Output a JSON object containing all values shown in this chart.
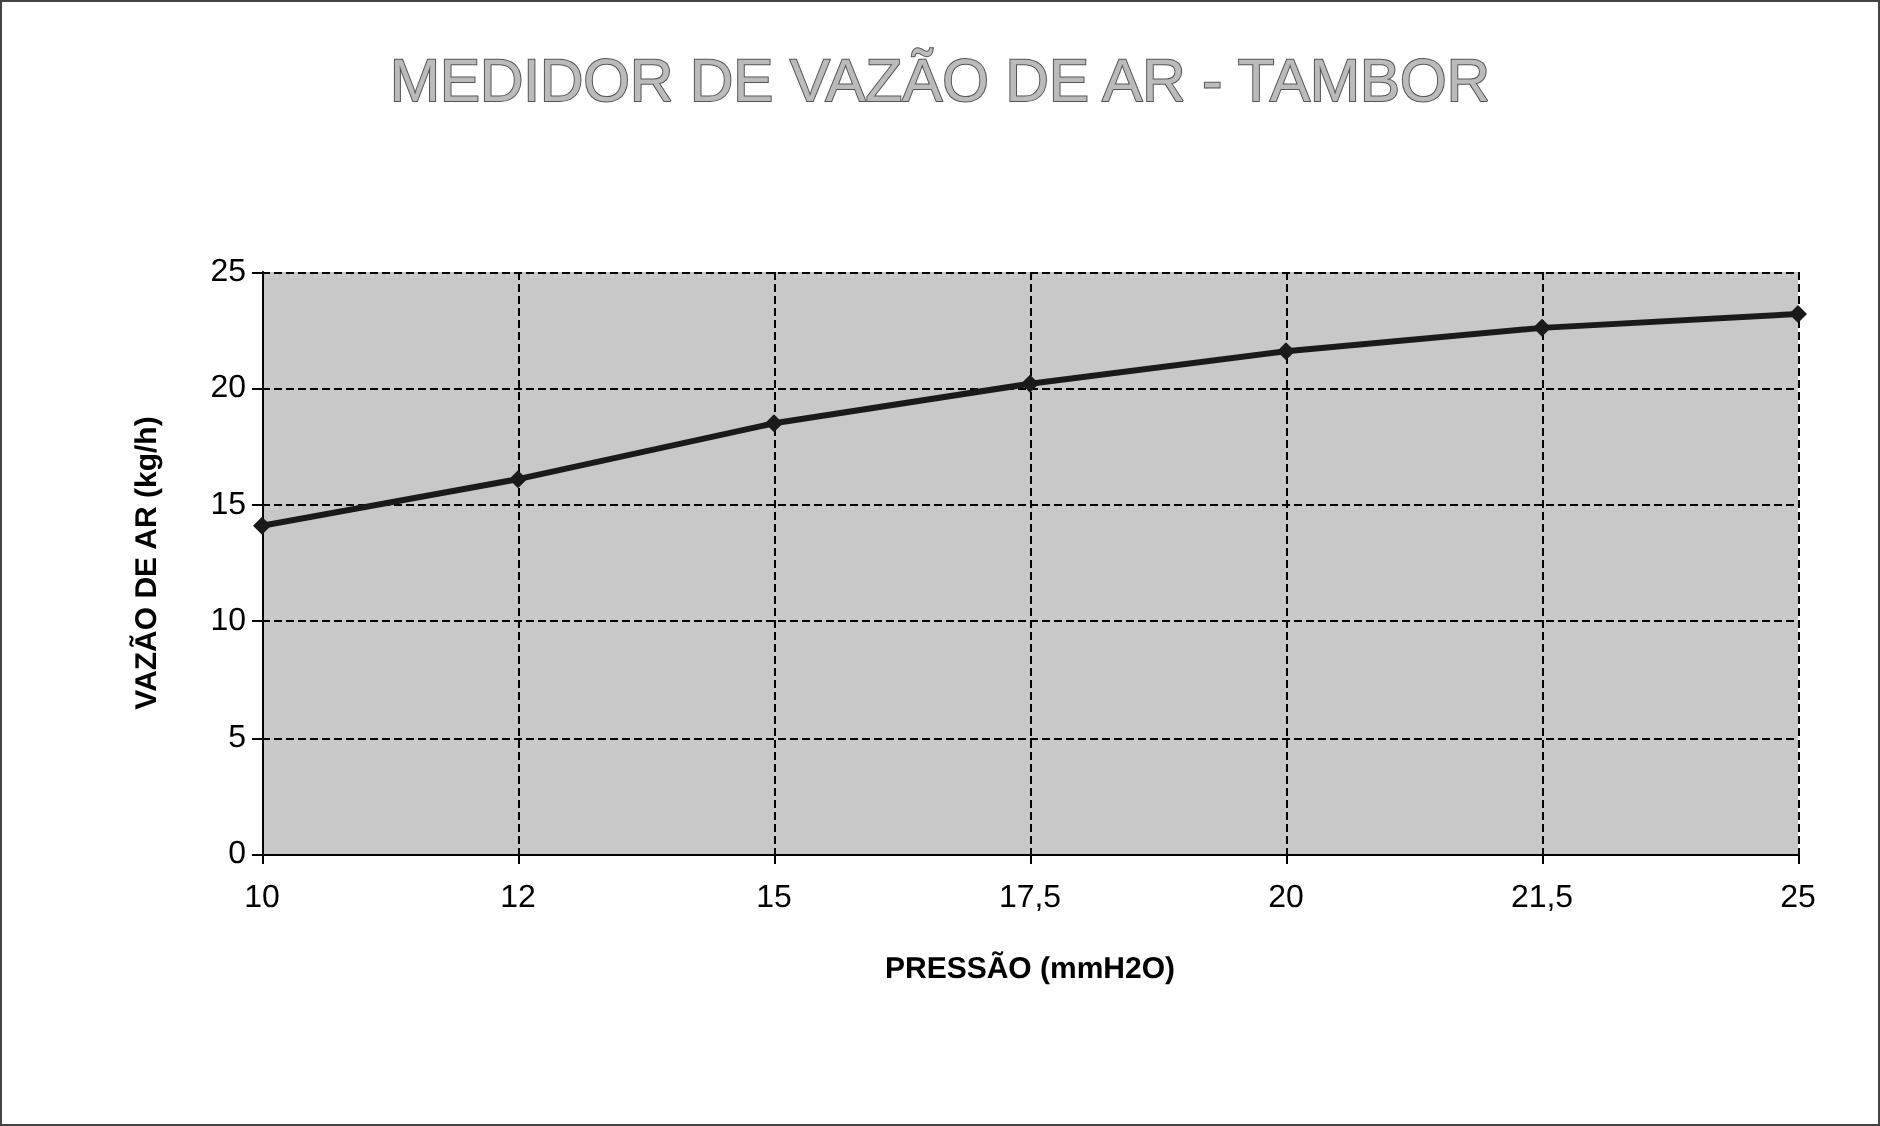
{
  "chart_data": {
    "type": "line",
    "title": "MEDIDOR DE VAZÃO DE AR - TAMBOR",
    "xlabel": "PRESSÃO (mmH2O)",
    "ylabel": "VAZÃO DE AR (kg/h)",
    "categories": [
      "10",
      "12",
      "15",
      "17,5",
      "20",
      "21,5",
      "25"
    ],
    "series": [
      {
        "color": "#1a1a1a",
        "values": [
          14.1,
          16.1,
          18.5,
          20.2,
          21.6,
          22.6,
          23.2
        ]
      }
    ],
    "ylim": [
      0,
      25
    ],
    "yticks": [
      0,
      5,
      10,
      15,
      20,
      25
    ],
    "grid": true,
    "marker": "diamond",
    "line_style": "solid"
  }
}
